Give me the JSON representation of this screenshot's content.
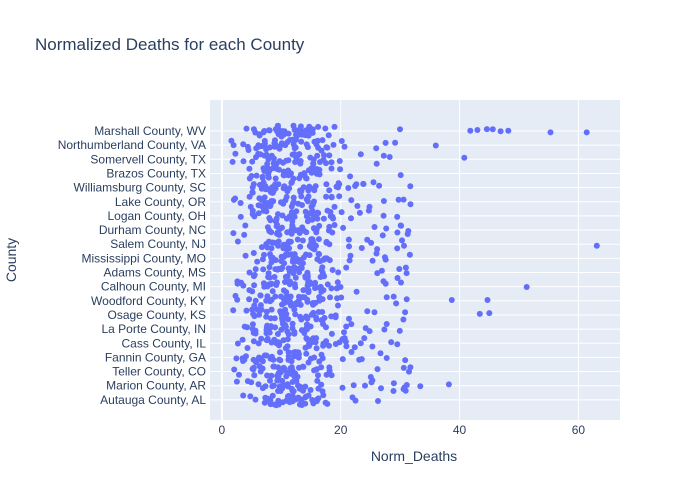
{
  "chart_data": {
    "type": "scatter",
    "title": "Normalized Deaths for each County",
    "xlabel": "Norm_Deaths",
    "ylabel": "County",
    "xlim": [
      -2,
      67
    ],
    "x_ticks": [
      0,
      20,
      40,
      60
    ],
    "grid": true,
    "marker_color": "#636efa",
    "plot_background": "#e5ecf6",
    "categories": [
      "Marshall County, WV",
      "Northumberland County, VA",
      "Somervell County, TX",
      "Brazos County, TX",
      "Williamsburg County, SC",
      "Lake County, OR",
      "Logan County, OH",
      "Durham County, NC",
      "Salem County, NJ",
      "Mississippi County, MO",
      "Adams County, MS",
      "Calhoun County, MI",
      "Woodford County, KY",
      "Osage County, KS",
      "La Porte County, IN",
      "Cass County, IL",
      "Fannin County, GA",
      "Teller County, CO",
      "Marion County, AR",
      "Autauga County, AL"
    ],
    "outliers": [
      {
        "y": "Marshall County, WV",
        "x": 41.8
      },
      {
        "y": "Marshall County, WV",
        "x": 43.0
      },
      {
        "y": "Marshall County, WV",
        "x": 44.6
      },
      {
        "y": "Marshall County, WV",
        "x": 45.6
      },
      {
        "y": "Marshall County, WV",
        "x": 46.9
      },
      {
        "y": "Marshall County, WV",
        "x": 48.2
      },
      {
        "y": "Marshall County, WV",
        "x": 55.3
      },
      {
        "y": "Marshall County, WV",
        "x": 61.4
      },
      {
        "y": "Northumberland County, VA",
        "x": 36.0
      },
      {
        "y": "Somervell County, TX",
        "x": 40.8
      },
      {
        "y": "Salem County, NJ",
        "x": 63.1
      },
      {
        "y": "Calhoun County, MI",
        "x": 51.3
      },
      {
        "y": "Woodford County, KY",
        "x": 44.7
      },
      {
        "y": "Woodford County, KY",
        "x": 38.7
      },
      {
        "y": "Osage County, KS",
        "x": 43.4
      },
      {
        "y": "Osage County, KS",
        "x": 45.0
      },
      {
        "y": "Marion County, AR",
        "x": 38.2
      },
      {
        "y": "Marion County, AR",
        "x": 33.4
      }
    ]
  }
}
